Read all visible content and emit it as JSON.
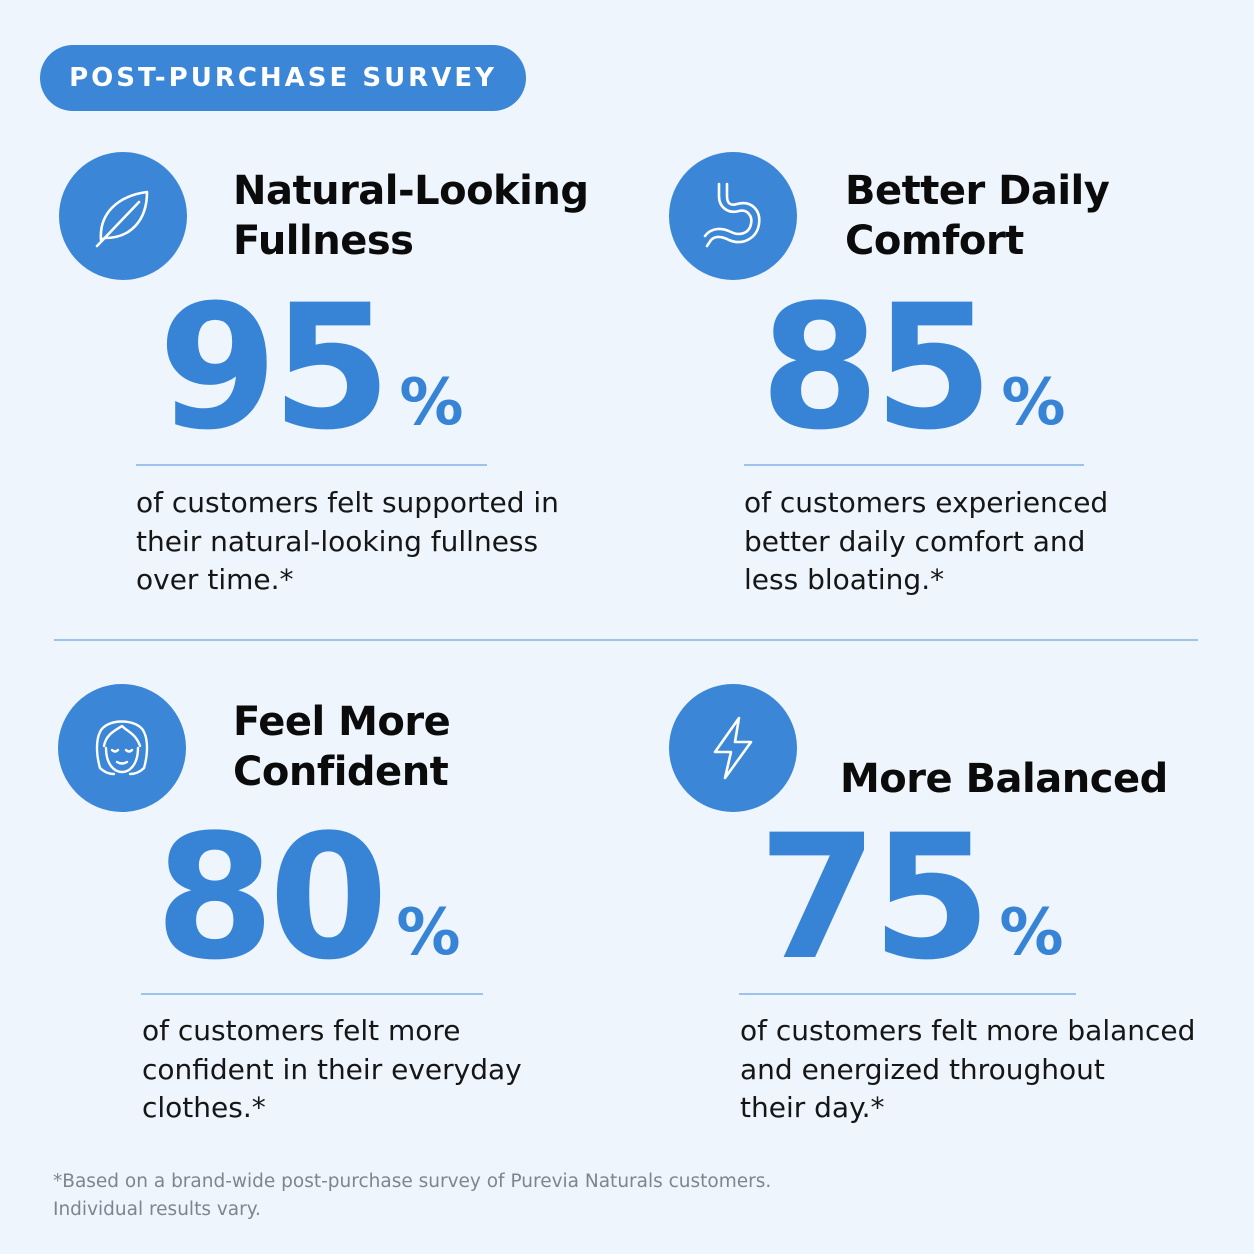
{
  "badge": "POST-PURCHASE SURVEY",
  "stats": [
    {
      "icon": "leaf-icon",
      "title": "Natural-Looking\nFullness",
      "number": "95",
      "percent_sign": "%",
      "desc_lines": [
        "of customers felt supported in",
        "their natural-looking fullness",
        "over time.*"
      ],
      "value": 95
    },
    {
      "icon": "stomach-icon",
      "title": "Better Daily\nComfort",
      "number": "85",
      "percent_sign": "%",
      "desc_lines": [
        "of customers experienced",
        "better daily comfort and",
        "less bloating.*"
      ],
      "value": 85
    },
    {
      "icon": "woman-face-icon",
      "title": "Feel More\nConfident",
      "number": "80",
      "percent_sign": "%",
      "desc_lines": [
        "of customers felt more",
        "confident in their everyday",
        "clothes.*"
      ],
      "value": 80
    },
    {
      "icon": "lightning-bolt-icon",
      "title": "More Balanced",
      "number": "75",
      "percent_sign": "%",
      "desc_lines": [
        "of customers felt more balanced",
        "and energized throughout",
        "their day.*"
      ],
      "value": 75
    }
  ],
  "footnote": {
    "line1": "*Based on a brand-wide post-purchase survey of Purevia Naturals customers.",
    "line2": "Individual results vary."
  },
  "colors": {
    "accent": "#3b86d6",
    "stat": "#3784d6",
    "background": "#eef5fc",
    "rule": "#9cc3ea"
  }
}
